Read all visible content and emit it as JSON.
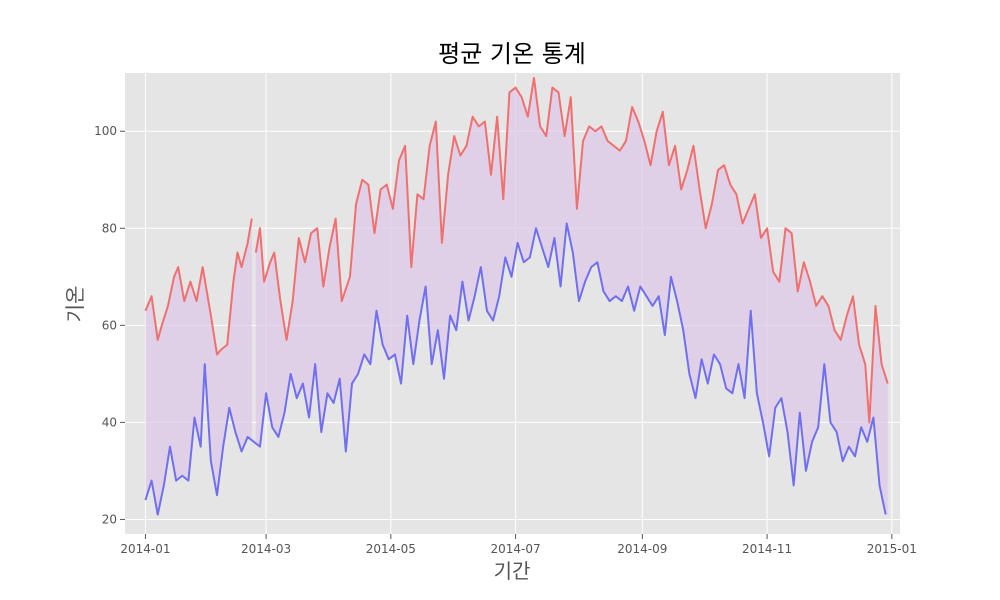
{
  "chart_data": {
    "type": "line",
    "title": "평균 기온 통계",
    "xlabel": "기간",
    "ylabel": "기온",
    "x_type": "date",
    "xlim": [
      "2013-12-22",
      "2015-01-05"
    ],
    "ylim": [
      17,
      112
    ],
    "x_ticks": [
      "2014-01",
      "2014-03",
      "2014-05",
      "2014-07",
      "2014-09",
      "2014-11",
      "2015-01"
    ],
    "y_ticks": [
      20,
      40,
      60,
      80,
      100
    ],
    "grid": true,
    "legend": "none",
    "fill_between": true,
    "colors": {
      "high": "#f07070",
      "low": "#7070ee",
      "fill": "#dcc8e8",
      "background": "#e5e5e5",
      "grid": "#ffffff"
    },
    "series": [
      {
        "key": "high",
        "points": [
          [
            "2014-01-01",
            63
          ],
          [
            "2014-01-04",
            66
          ],
          [
            "2014-01-07",
            57
          ],
          [
            "2014-01-09",
            60
          ],
          [
            "2014-01-12",
            64
          ],
          [
            "2014-01-15",
            70
          ],
          [
            "2014-01-17",
            72
          ],
          [
            "2014-01-20",
            65
          ],
          [
            "2014-01-23",
            69
          ],
          [
            "2014-01-26",
            65
          ],
          [
            "2014-01-29",
            72
          ],
          [
            "2014-02-02",
            62
          ],
          [
            "2014-02-05",
            54
          ],
          [
            "2014-02-07",
            55
          ],
          [
            "2014-02-10",
            56
          ],
          [
            "2014-02-13",
            69
          ],
          [
            "2014-02-15",
            75
          ],
          [
            "2014-02-17",
            72
          ],
          [
            "2014-02-20",
            77
          ],
          [
            "2014-02-22",
            82
          ]
        ]
      },
      {
        "key": "high",
        "points": [
          [
            "2014-02-24",
            75
          ],
          [
            "2014-02-26",
            80
          ],
          [
            "2014-02-28",
            69
          ],
          [
            "2014-03-03",
            73
          ],
          [
            "2014-03-05",
            75
          ],
          [
            "2014-03-08",
            65
          ],
          [
            "2014-03-11",
            57
          ],
          [
            "2014-03-14",
            65
          ],
          [
            "2014-03-17",
            78
          ],
          [
            "2014-03-20",
            73
          ],
          [
            "2014-03-23",
            79
          ],
          [
            "2014-03-26",
            80
          ],
          [
            "2014-03-29",
            68
          ],
          [
            "2014-04-01",
            76
          ],
          [
            "2014-04-04",
            82
          ],
          [
            "2014-04-07",
            65
          ],
          [
            "2014-04-11",
            70
          ],
          [
            "2014-04-14",
            85
          ],
          [
            "2014-04-17",
            90
          ],
          [
            "2014-04-20",
            89
          ],
          [
            "2014-04-23",
            79
          ],
          [
            "2014-04-26",
            88
          ],
          [
            "2014-04-29",
            89
          ],
          [
            "2014-05-02",
            84
          ],
          [
            "2014-05-05",
            94
          ],
          [
            "2014-05-08",
            97
          ],
          [
            "2014-05-11",
            72
          ],
          [
            "2014-05-14",
            87
          ],
          [
            "2014-05-17",
            86
          ],
          [
            "2014-05-20",
            97
          ],
          [
            "2014-05-23",
            102
          ],
          [
            "2014-05-26",
            77
          ],
          [
            "2014-05-29",
            91
          ],
          [
            "2014-06-01",
            99
          ],
          [
            "2014-06-04",
            95
          ],
          [
            "2014-06-07",
            97
          ],
          [
            "2014-06-10",
            103
          ],
          [
            "2014-06-13",
            101
          ],
          [
            "2014-06-16",
            102
          ],
          [
            "2014-06-19",
            91
          ],
          [
            "2014-06-22",
            103
          ],
          [
            "2014-06-25",
            86
          ],
          [
            "2014-06-28",
            108
          ],
          [
            "2014-07-01",
            109
          ],
          [
            "2014-07-04",
            107
          ],
          [
            "2014-07-07",
            103
          ],
          [
            "2014-07-10",
            111
          ],
          [
            "2014-07-13",
            101
          ],
          [
            "2014-07-16",
            99
          ],
          [
            "2014-07-19",
            109
          ],
          [
            "2014-07-22",
            108
          ],
          [
            "2014-07-25",
            99
          ],
          [
            "2014-07-28",
            107
          ],
          [
            "2014-07-31",
            84
          ],
          [
            "2014-08-03",
            98
          ],
          [
            "2014-08-06",
            101
          ],
          [
            "2014-08-09",
            100
          ],
          [
            "2014-08-12",
            101
          ],
          [
            "2014-08-15",
            98
          ],
          [
            "2014-08-18",
            97
          ],
          [
            "2014-08-21",
            96
          ],
          [
            "2014-08-24",
            98
          ],
          [
            "2014-08-27",
            105
          ],
          [
            "2014-08-30",
            102
          ],
          [
            "2014-09-02",
            98
          ],
          [
            "2014-09-05",
            93
          ],
          [
            "2014-09-08",
            100
          ],
          [
            "2014-09-11",
            104
          ],
          [
            "2014-09-14",
            93
          ],
          [
            "2014-09-17",
            97
          ],
          [
            "2014-09-20",
            88
          ],
          [
            "2014-09-23",
            92
          ],
          [
            "2014-09-26",
            97
          ],
          [
            "2014-09-29",
            88
          ],
          [
            "2014-10-02",
            80
          ],
          [
            "2014-10-05",
            85
          ],
          [
            "2014-10-08",
            92
          ],
          [
            "2014-10-11",
            93
          ],
          [
            "2014-10-14",
            89
          ],
          [
            "2014-10-17",
            87
          ],
          [
            "2014-10-20",
            81
          ],
          [
            "2014-10-23",
            84
          ],
          [
            "2014-10-26",
            87
          ],
          [
            "2014-10-29",
            78
          ],
          [
            "2014-11-01",
            80
          ],
          [
            "2014-11-04",
            71
          ],
          [
            "2014-11-07",
            69
          ],
          [
            "2014-11-10",
            80
          ],
          [
            "2014-11-13",
            79
          ],
          [
            "2014-11-16",
            67
          ],
          [
            "2014-11-19",
            73
          ],
          [
            "2014-11-22",
            69
          ],
          [
            "2014-11-25",
            64
          ],
          [
            "2014-11-28",
            66
          ],
          [
            "2014-12-01",
            64
          ],
          [
            "2014-12-04",
            59
          ],
          [
            "2014-12-07",
            57
          ],
          [
            "2014-12-10",
            62
          ],
          [
            "2014-12-13",
            66
          ],
          [
            "2014-12-16",
            56
          ],
          [
            "2014-12-19",
            52
          ],
          [
            "2014-12-21",
            40
          ],
          [
            "2014-12-24",
            64
          ],
          [
            "2014-12-27",
            52
          ],
          [
            "2014-12-30",
            48
          ]
        ]
      },
      {
        "key": "low",
        "points": [
          [
            "2014-01-01",
            24
          ],
          [
            "2014-01-04",
            28
          ],
          [
            "2014-01-07",
            21
          ],
          [
            "2014-01-10",
            27
          ],
          [
            "2014-01-13",
            35
          ],
          [
            "2014-01-16",
            28
          ],
          [
            "2014-01-19",
            29
          ],
          [
            "2014-01-22",
            28
          ],
          [
            "2014-01-25",
            41
          ],
          [
            "2014-01-28",
            35
          ],
          [
            "2014-01-30",
            52
          ],
          [
            "2014-02-02",
            32
          ],
          [
            "2014-02-05",
            25
          ],
          [
            "2014-02-08",
            35
          ],
          [
            "2014-02-11",
            43
          ],
          [
            "2014-02-14",
            38
          ],
          [
            "2014-02-17",
            34
          ],
          [
            "2014-02-20",
            37
          ],
          [
            "2014-02-23",
            36
          ],
          [
            "2014-02-26",
            35
          ],
          [
            "2014-03-01",
            46
          ],
          [
            "2014-03-04",
            39
          ],
          [
            "2014-03-07",
            37
          ],
          [
            "2014-03-10",
            42
          ],
          [
            "2014-03-13",
            50
          ],
          [
            "2014-03-16",
            45
          ],
          [
            "2014-03-19",
            48
          ],
          [
            "2014-03-22",
            41
          ],
          [
            "2014-03-25",
            52
          ],
          [
            "2014-03-28",
            38
          ],
          [
            "2014-03-31",
            46
          ],
          [
            "2014-04-03",
            44
          ],
          [
            "2014-04-06",
            49
          ],
          [
            "2014-04-09",
            34
          ],
          [
            "2014-04-12",
            48
          ],
          [
            "2014-04-15",
            50
          ],
          [
            "2014-04-18",
            54
          ],
          [
            "2014-04-21",
            52
          ],
          [
            "2014-04-24",
            63
          ],
          [
            "2014-04-27",
            56
          ],
          [
            "2014-04-30",
            53
          ],
          [
            "2014-05-03",
            54
          ],
          [
            "2014-05-06",
            48
          ],
          [
            "2014-05-09",
            62
          ],
          [
            "2014-05-12",
            52
          ],
          [
            "2014-05-15",
            61
          ],
          [
            "2014-05-18",
            68
          ],
          [
            "2014-05-21",
            52
          ],
          [
            "2014-05-24",
            59
          ],
          [
            "2014-05-27",
            49
          ],
          [
            "2014-05-30",
            62
          ],
          [
            "2014-06-02",
            59
          ],
          [
            "2014-06-05",
            69
          ],
          [
            "2014-06-08",
            61
          ],
          [
            "2014-06-11",
            66
          ],
          [
            "2014-06-14",
            72
          ],
          [
            "2014-06-17",
            63
          ],
          [
            "2014-06-20",
            61
          ],
          [
            "2014-06-23",
            66
          ],
          [
            "2014-06-26",
            74
          ],
          [
            "2014-06-29",
            70
          ],
          [
            "2014-07-02",
            77
          ],
          [
            "2014-07-05",
            73
          ],
          [
            "2014-07-08",
            74
          ],
          [
            "2014-07-11",
            80
          ],
          [
            "2014-07-14",
            76
          ],
          [
            "2014-07-17",
            72
          ],
          [
            "2014-07-20",
            78
          ],
          [
            "2014-07-23",
            68
          ],
          [
            "2014-07-26",
            81
          ],
          [
            "2014-07-29",
            75
          ],
          [
            "2014-08-01",
            65
          ],
          [
            "2014-08-04",
            69
          ],
          [
            "2014-08-07",
            72
          ],
          [
            "2014-08-10",
            73
          ],
          [
            "2014-08-13",
            67
          ],
          [
            "2014-08-16",
            65
          ],
          [
            "2014-08-19",
            66
          ],
          [
            "2014-08-22",
            65
          ],
          [
            "2014-08-25",
            68
          ],
          [
            "2014-08-28",
            63
          ],
          [
            "2014-08-31",
            68
          ],
          [
            "2014-09-03",
            66
          ],
          [
            "2014-09-06",
            64
          ],
          [
            "2014-09-09",
            66
          ],
          [
            "2014-09-12",
            58
          ],
          [
            "2014-09-15",
            70
          ],
          [
            "2014-09-18",
            65
          ],
          [
            "2014-09-21",
            59
          ],
          [
            "2014-09-24",
            50
          ],
          [
            "2014-09-27",
            45
          ],
          [
            "2014-09-30",
            53
          ],
          [
            "2014-10-03",
            48
          ],
          [
            "2014-10-06",
            54
          ],
          [
            "2014-10-09",
            52
          ],
          [
            "2014-10-12",
            47
          ],
          [
            "2014-10-15",
            46
          ],
          [
            "2014-10-18",
            52
          ],
          [
            "2014-10-21",
            45
          ],
          [
            "2014-10-24",
            63
          ],
          [
            "2014-10-27",
            46
          ],
          [
            "2014-10-30",
            40
          ],
          [
            "2014-11-02",
            33
          ],
          [
            "2014-11-05",
            43
          ],
          [
            "2014-11-08",
            45
          ],
          [
            "2014-11-11",
            38
          ],
          [
            "2014-11-14",
            27
          ],
          [
            "2014-11-17",
            42
          ],
          [
            "2014-11-20",
            30
          ],
          [
            "2014-11-23",
            36
          ],
          [
            "2014-11-26",
            39
          ],
          [
            "2014-11-29",
            52
          ],
          [
            "2014-12-02",
            40
          ],
          [
            "2014-12-05",
            38
          ],
          [
            "2014-12-08",
            32
          ],
          [
            "2014-12-11",
            35
          ],
          [
            "2014-12-14",
            33
          ],
          [
            "2014-12-17",
            39
          ],
          [
            "2014-12-20",
            36
          ],
          [
            "2014-12-23",
            41
          ],
          [
            "2014-12-26",
            27
          ],
          [
            "2014-12-29",
            21
          ]
        ]
      }
    ]
  }
}
